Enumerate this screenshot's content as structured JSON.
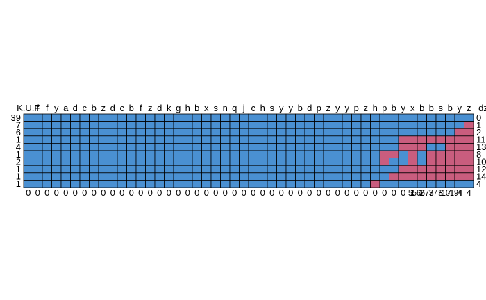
{
  "chart_data": {
    "type": "heatmap",
    "n_cols": 48,
    "col_labels": [
      "K.U.F",
      "f",
      "f",
      "y",
      "a",
      "d",
      "c",
      "b",
      "z",
      "d",
      "c",
      "b",
      "f",
      "z",
      "d",
      "k",
      "g",
      "h",
      "b",
      "x",
      "s",
      "n",
      "q",
      "j",
      "c",
      "h",
      "s",
      "y",
      "y",
      "b",
      "d",
      "p",
      "z",
      "y",
      "y",
      "p",
      "z",
      "h",
      "p",
      "b",
      "y",
      "x",
      "b",
      "b",
      "s",
      "b",
      "y",
      "z"
    ],
    "row_labels_left": [
      "39",
      "7",
      "6",
      "1",
      "4",
      "1",
      "2",
      "1",
      "1",
      "1"
    ],
    "row_labels_right": [
      "0",
      "1",
      "2",
      "11",
      "13",
      "8",
      "10",
      "12",
      "14",
      "4"
    ],
    "bottom_labels": [
      "0",
      "0",
      "0",
      "0",
      "0",
      "0",
      "0",
      "0",
      "0",
      "0",
      "0",
      "0",
      "0",
      "0",
      "0",
      "0",
      "0",
      "0",
      "0",
      "0",
      "0",
      "0",
      "0",
      "0",
      "0",
      "0",
      "0",
      "0",
      "0",
      "0",
      "0",
      "0",
      "0",
      "0",
      "0",
      "0",
      "0",
      "0",
      "0",
      "0",
      "0",
      "1",
      "2",
      "3",
      "3",
      "4",
      "4",
      "4"
    ],
    "bottom_tail": "5566777710194",
    "cells": [
      "000000000000000000000000000000000000000000000000",
      "000000000000000000000000000000000000000000000001",
      "000000000000000000000000000000000000000000000011",
      "000000000000000000000000000000000000000011111111",
      "000000000000000000000000000000000000000011100111",
      "000000000000000000000000000000000000001101011111",
      "000000000000000000000000000000000000001001011111",
      "000000000000000000000000000000000000000011111111",
      "000000000000000000000000000000000000000111111111",
      "000000000000000000000000000000000000010000000000"
    ],
    "colors": {
      "0": "#4a90d2",
      "1": "#c95d7e",
      "border": "#000000"
    },
    "grid": true,
    "legend": "none"
  }
}
